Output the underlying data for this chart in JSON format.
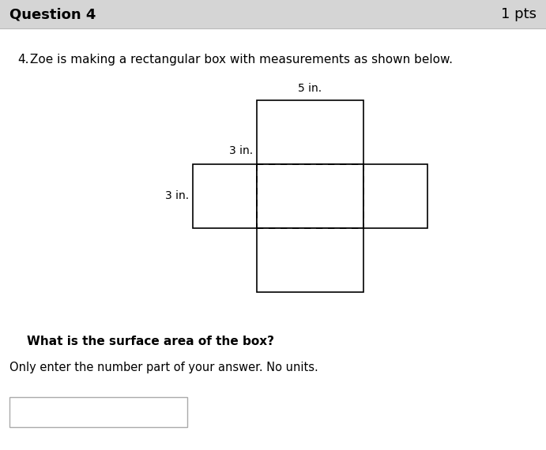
{
  "bg_color": "#e8e8e8",
  "header_bg": "#d5d5d5",
  "white": "#ffffff",
  "header_text": "Question 4",
  "header_pts": "1 pts",
  "question_num": "4.",
  "question_text": "Zoe is making a rectangular box with measurements as shown below.",
  "label_5in": "5 in.",
  "label_3in_top": "3 in.",
  "label_3in_left": "3 in.",
  "bold_question": "What is the surface area of the box?",
  "answer_instruction": "Only enter the number part of your answer. No units.",
  "lw": 1.2
}
